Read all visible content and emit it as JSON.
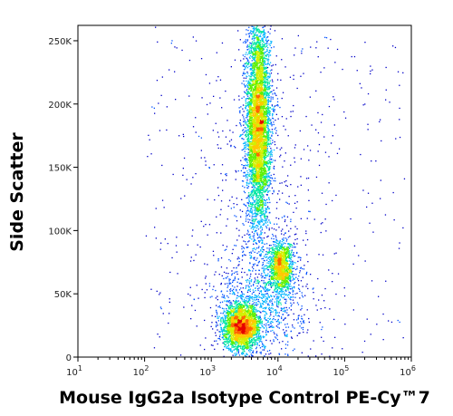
{
  "chart_data": {
    "type": "scatter",
    "subtype": "flow-cytometry-density-plot",
    "title": "",
    "xlabel": "Mouse IgG2a Isotype Control PE-Cy™",
    "xlabel_suffix": "7",
    "ylabel": "Side Scatter",
    "x_scale": "log",
    "xlim": [
      10,
      1000000
    ],
    "ylim": [
      0,
      262144
    ],
    "grid": false,
    "x_ticks": [
      {
        "value": 10,
        "base": "10",
        "exp": "1"
      },
      {
        "value": 100,
        "base": "10",
        "exp": "2"
      },
      {
        "value": 1000,
        "base": "10",
        "exp": "3"
      },
      {
        "value": 10000,
        "base": "10",
        "exp": "4"
      },
      {
        "value": 100000,
        "base": "10",
        "exp": "5"
      },
      {
        "value": 1000000,
        "base": "10",
        "exp": "6"
      }
    ],
    "y_ticks": [
      {
        "value": 0,
        "label": "0"
      },
      {
        "value": 50000,
        "label": "50K"
      },
      {
        "value": 100000,
        "label": "100K"
      },
      {
        "value": 150000,
        "label": "150K"
      },
      {
        "value": 200000,
        "label": "200K"
      },
      {
        "value": 250000,
        "label": "250K"
      }
    ],
    "density_colors": [
      "#0000c8",
      "#0050ff",
      "#00b4ff",
      "#00e6a0",
      "#5af000",
      "#d2f000",
      "#ffc800",
      "#ff6400",
      "#e60000"
    ],
    "populations": [
      {
        "x_center": 5000,
        "y_center": 185000,
        "x_spread_decades": 0.09,
        "y_spread": 40000,
        "events": 5200
      },
      {
        "x_center": 11000,
        "y_center": 72000,
        "x_spread_decades": 0.09,
        "y_spread": 10000,
        "events": 1300
      },
      {
        "x_center": 2800,
        "y_center": 24000,
        "x_spread_decades": 0.14,
        "y_spread": 9000,
        "events": 2600
      },
      {
        "x_center": 6000,
        "y_center": 45000,
        "x_spread_decades": 0.35,
        "y_spread": 22000,
        "events": 900
      },
      {
        "x_center": 6000,
        "y_center": 120000,
        "x_spread_decades": 0.4,
        "y_spread": 70000,
        "events": 500
      }
    ]
  }
}
